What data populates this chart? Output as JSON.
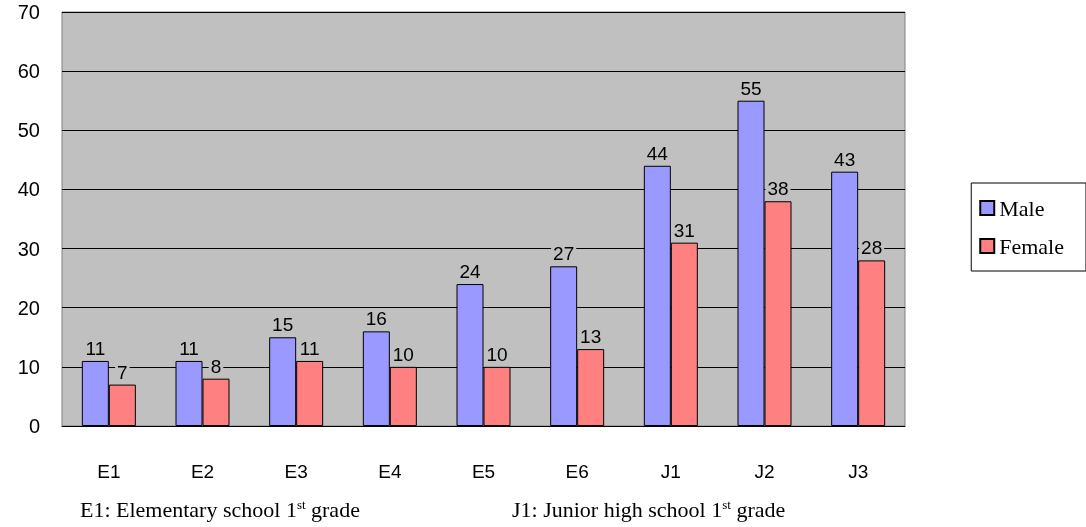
{
  "chart_data": {
    "type": "bar",
    "categories": [
      "E1",
      "E2",
      "E3",
      "E4",
      "E5",
      "E6",
      "J1",
      "J2",
      "J3"
    ],
    "series": [
      {
        "name": "Male",
        "color": "#9999ff",
        "values": [
          11,
          11,
          15,
          16,
          24,
          27,
          44,
          55,
          43
        ]
      },
      {
        "name": "Female",
        "color": "#ff8080",
        "values": [
          7,
          8,
          11,
          10,
          10,
          13,
          31,
          38,
          28
        ]
      }
    ],
    "ylim": [
      0,
      70
    ],
    "yticks": [
      0,
      10,
      20,
      30,
      40,
      50,
      60,
      70
    ],
    "grid": "y",
    "legend": "right",
    "data_labels": true,
    "annotations": [
      "E1: Elementary school 1$^{st}$ grade",
      "J1: Junior high school 1$^{st}$ grade"
    ]
  }
}
